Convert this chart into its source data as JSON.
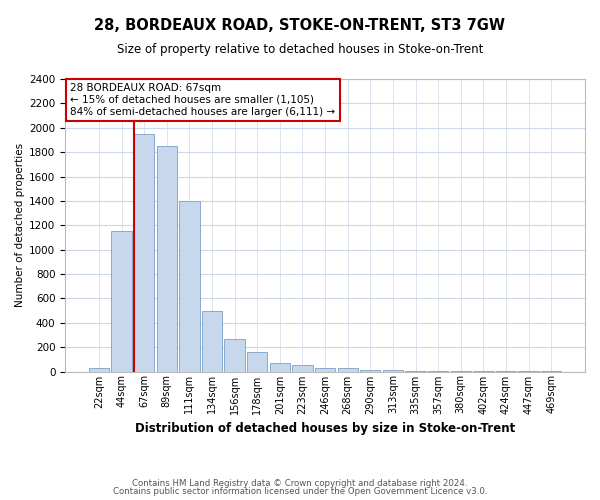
{
  "title1": "28, BORDEAUX ROAD, STOKE-ON-TRENT, ST3 7GW",
  "title2": "Size of property relative to detached houses in Stoke-on-Trent",
  "xlabel": "Distribution of detached houses by size in Stoke-on-Trent",
  "ylabel": "Number of detached properties",
  "footnote1": "Contains HM Land Registry data © Crown copyright and database right 2024.",
  "footnote2": "Contains public sector information licensed under the Open Government Licence v3.0.",
  "annotation_title": "28 BORDEAUX ROAD: 67sqm",
  "annotation_line1": "← 15% of detached houses are smaller (1,105)",
  "annotation_line2": "84% of semi-detached houses are larger (6,111) →",
  "bar_color": "#c8d8ec",
  "bar_edge_color": "#88aace",
  "vline_color": "#cc0000",
  "annotation_box_edge": "#cc0000",
  "background_color": "#ffffff",
  "grid_color": "#ccd8e8",
  "categories": [
    "22sqm",
    "44sqm",
    "67sqm",
    "89sqm",
    "111sqm",
    "134sqm",
    "156sqm",
    "178sqm",
    "201sqm",
    "223sqm",
    "246sqm",
    "268sqm",
    "290sqm",
    "313sqm",
    "335sqm",
    "357sqm",
    "380sqm",
    "402sqm",
    "424sqm",
    "447sqm",
    "469sqm"
  ],
  "values": [
    25,
    1150,
    1950,
    1850,
    1400,
    500,
    270,
    160,
    70,
    50,
    30,
    25,
    15,
    10,
    8,
    4,
    3,
    3,
    2,
    2,
    8
  ],
  "vline_idx": 2,
  "ylim": [
    0,
    2400
  ],
  "yticks": [
    0,
    200,
    400,
    600,
    800,
    1000,
    1200,
    1400,
    1600,
    1800,
    2000,
    2200,
    2400
  ]
}
